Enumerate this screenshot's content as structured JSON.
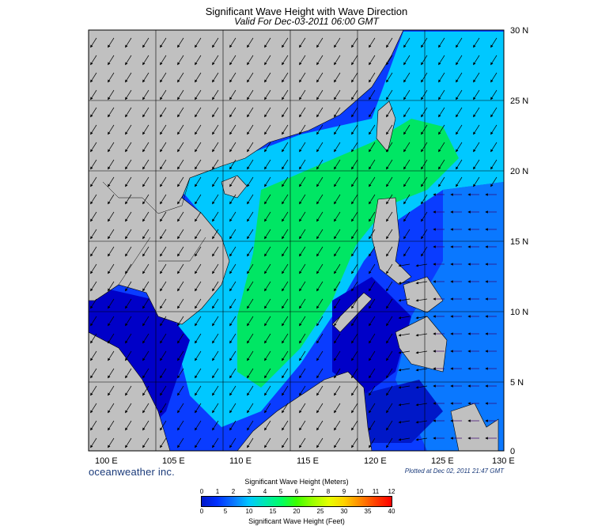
{
  "header": {
    "title": "Significant Wave Height with Wave Direction",
    "subtitle": "Valid For Dec-03-2011 06:00 GMT"
  },
  "map": {
    "latitude_labels": [
      "30 N",
      "25 N",
      "20 N",
      "15 N",
      "10 N",
      "5 N",
      "0"
    ],
    "longitude_labels": [
      "100 E",
      "105 E",
      "110 E",
      "115 E",
      "120 E",
      "125 E",
      "130 E"
    ],
    "colors": {
      "land": "#c0c0c0",
      "deep_blue": "#0000c8",
      "blue": "#0a3cff",
      "cyan": "#00c8ff",
      "green": "#00e664",
      "arrow": "#000000"
    }
  },
  "footer": {
    "brand": "oceanweather inc.",
    "plotted": "Plotted at Dec 02, 2011 21:47 GMT"
  },
  "colorbar": {
    "title_meters": "Significant Wave Height (Meters)",
    "title_feet": "Significant Wave Height (Feet)",
    "meters_ticks": [
      "0",
      "1",
      "2",
      "3",
      "4",
      "5",
      "6",
      "7",
      "8",
      "9",
      "10",
      "11",
      "12"
    ],
    "feet_ticks": [
      "0",
      "5",
      "10",
      "15",
      "20",
      "25",
      "30",
      "35",
      "40"
    ]
  }
}
